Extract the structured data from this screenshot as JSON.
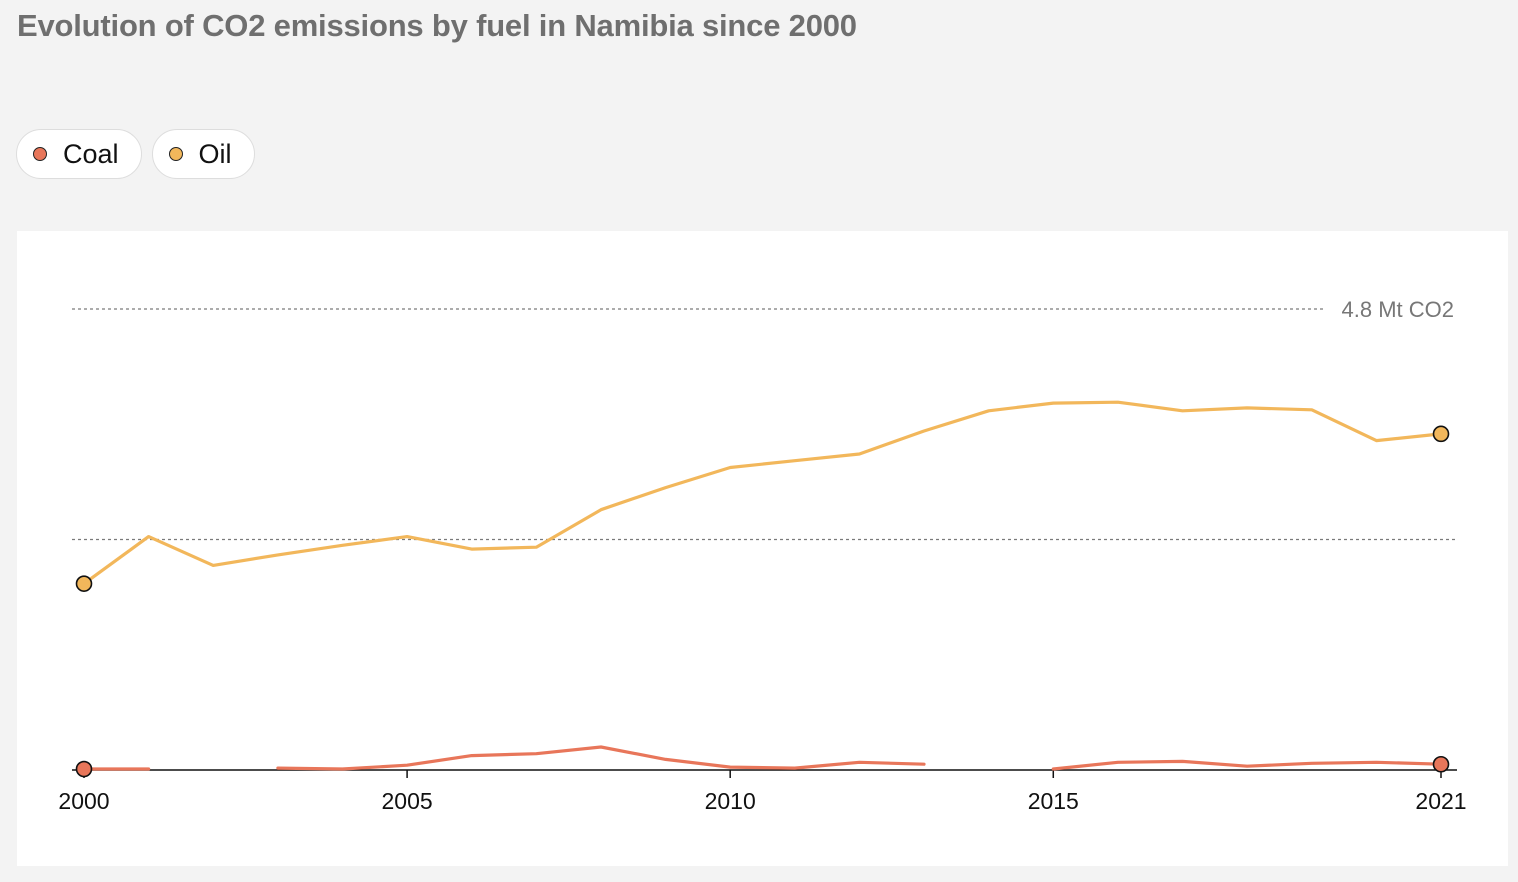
{
  "title": "Evolution of CO2 emissions by fuel in Namibia since 2000",
  "legend": [
    {
      "label": "Coal",
      "color": "#e8765a"
    },
    {
      "label": "Oil",
      "color": "#f2b75b"
    }
  ],
  "chart_data": {
    "type": "line",
    "title": "Evolution of CO2 emissions by fuel in Namibia since 2000",
    "xlabel": "",
    "ylabel": "",
    "xlim": [
      2000,
      2021
    ],
    "ylim": [
      0,
      4.8
    ],
    "grid_lines": [
      {
        "value": 2.4,
        "label": ""
      },
      {
        "value": 4.8,
        "label": "4.8 Mt CO2"
      }
    ],
    "x_ticks": [
      "2000",
      "2005",
      "2010",
      "2015",
      "2021"
    ],
    "x_tick_values": [
      2000,
      2005,
      2010,
      2015,
      2021
    ],
    "legend_position": "top-left",
    "series": [
      {
        "name": "Oil",
        "color": "#f2b75b",
        "x": [
          2000,
          2001,
          2002,
          2003,
          2004,
          2005,
          2006,
          2007,
          2008,
          2009,
          2010,
          2011,
          2012,
          2013,
          2014,
          2015,
          2016,
          2017,
          2018,
          2019,
          2020,
          2021
        ],
        "values": [
          1.94,
          2.43,
          2.13,
          2.24,
          2.34,
          2.43,
          2.3,
          2.32,
          2.71,
          2.94,
          3.15,
          3.22,
          3.29,
          3.53,
          3.74,
          3.82,
          3.83,
          3.74,
          3.77,
          3.75,
          3.43,
          3.5
        ]
      },
      {
        "name": "Coal",
        "color": "#e8765a",
        "x": [
          2000,
          2001,
          2002,
          2003,
          2004,
          2005,
          2006,
          2007,
          2008,
          2009,
          2010,
          2011,
          2012,
          2013,
          2014,
          2015,
          2016,
          2017,
          2018,
          2019,
          2020,
          2021
        ],
        "values": [
          0.01,
          0.01,
          null,
          0.02,
          0.01,
          0.05,
          0.15,
          0.17,
          0.24,
          0.11,
          0.03,
          0.02,
          0.08,
          0.06,
          null,
          0.01,
          0.08,
          0.09,
          0.04,
          0.07,
          0.08,
          0.06
        ]
      }
    ]
  }
}
